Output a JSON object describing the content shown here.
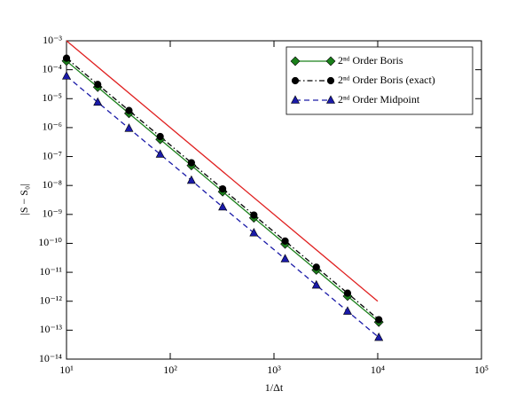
{
  "chart_data": {
    "type": "line",
    "xlabel": "1/Δt",
    "ylabel": "|S − S₀|",
    "log_x": true,
    "log_y": true,
    "legend": "upper right",
    "x": [
      10,
      20,
      40,
      80,
      160,
      320,
      640,
      1280,
      2560,
      5120,
      10240
    ],
    "series": [
      {
        "name": "2ⁿᵈ Order Boris",
        "color": "#1a801a",
        "line": "solid",
        "marker": "diamond",
        "values": [
          0.0002,
          2.5e-05,
          3.1e-06,
          3.9e-07,
          4.9e-08,
          6.1e-09,
          7.6e-10,
          9.5e-11,
          1.2e-11,
          1.5e-12,
          1.9e-13
        ]
      },
      {
        "name": "2ⁿᵈ Order Boris (exact)",
        "color": "#000000",
        "line": "dashdot",
        "marker": "circle",
        "values": [
          0.00025,
          3.1e-05,
          3.9e-06,
          4.9e-07,
          6.1e-08,
          7.6e-09,
          9.5e-10,
          1.2e-10,
          1.5e-11,
          1.9e-12,
          2.3e-13
        ]
      },
      {
        "name": "2ⁿᵈ Order Midpoint",
        "color": "#1a1aa8",
        "line": "dashed",
        "marker": "triangle",
        "values": [
          6e-05,
          7.5e-06,
          9.4e-07,
          1.2e-07,
          1.5e-08,
          1.8e-09,
          2.3e-10,
          2.9e-11,
          3.6e-12,
          4.5e-13,
          5.6e-14
        ]
      },
      {
        "color": "#e02020",
        "line": "solid",
        "x": [
          10,
          10000
        ],
        "values": [
          0.001,
          1e-12
        ]
      }
    ],
    "xlim": [
      10,
      100000
    ],
    "ylim": [
      1e-14,
      0.001
    ],
    "xticks": [
      {
        "value": 10,
        "label": "10¹"
      },
      {
        "value": 100,
        "label": "10²"
      },
      {
        "value": 1000,
        "label": "10³"
      },
      {
        "value": 10000,
        "label": "10⁴"
      },
      {
        "value": 100000,
        "label": "10⁵"
      }
    ],
    "yticks": [
      {
        "value": 1e-14,
        "label": "10⁻¹⁴"
      },
      {
        "value": 1e-13,
        "label": "10⁻¹³"
      },
      {
        "value": 1e-12,
        "label": "10⁻¹²"
      },
      {
        "value": 1e-11,
        "label": "10⁻¹¹"
      },
      {
        "value": 1e-10,
        "label": "10⁻¹⁰"
      },
      {
        "value": 1e-09,
        "label": "10⁻⁹"
      },
      {
        "value": 1e-08,
        "label": "10⁻⁸"
      },
      {
        "value": 1e-07,
        "label": "10⁻⁷"
      },
      {
        "value": 1e-06,
        "label": "10⁻⁶"
      },
      {
        "value": 1e-05,
        "label": "10⁻⁵"
      },
      {
        "value": 0.0001,
        "label": "10⁻⁴"
      },
      {
        "value": 0.001,
        "label": "10⁻³"
      }
    ]
  }
}
